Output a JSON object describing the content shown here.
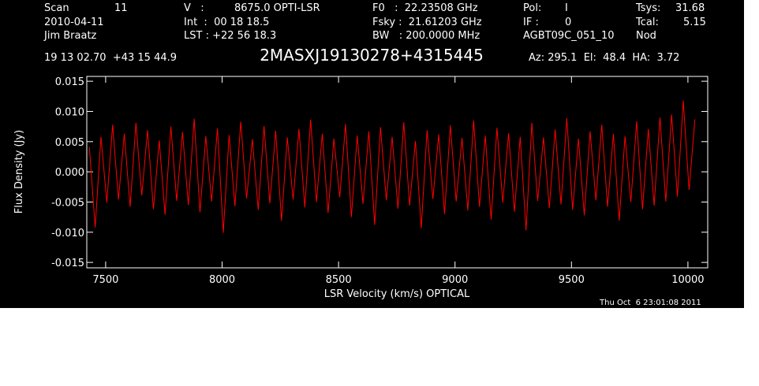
{
  "chart_data": {
    "type": "line",
    "title": "2MASXJ19130278+4315445",
    "annotations": [
      "Scan",
      "11",
      "V   :",
      "8675.0 OPTI-LSR",
      "F0   :  22.23508 GHz",
      "Pol:",
      "I",
      "Tsys:",
      "31.68",
      "2010-04-11",
      "Int  :  00 18 18.5",
      "Fsky :  21.61203 GHz",
      "IF :",
      "0",
      "Tcal:",
      "5.15",
      "Jim Braatz",
      "LST : +22 56 18.3",
      "BW   : 200.0000 MHz",
      "AGBT09C_051_10",
      "Nod",
      "19 13 02.70  +43 15 44.9",
      "Az: 295.1  El:  48.4  HA:  3.72",
      "Thu Oct  6 23:01:08 2011"
    ],
    "xlabel": "LSR Velocity (km/s) OPTICAL",
    "ylabel": "Flux Density (Jy)",
    "xlim": [
      7419,
      10085
    ],
    "ylim": [
      -0.0159,
      0.0158
    ],
    "xticks": [
      7500,
      8000,
      8500,
      9000,
      9500,
      10000
    ],
    "yticks": [
      {
        "value": 0.015,
        "label": "0.015"
      },
      {
        "value": 0.01,
        "label": "0.010"
      },
      {
        "value": 0.005,
        "label": "0.005"
      },
      {
        "value": 0,
        "label": "0.000"
      },
      {
        "value": -0.005,
        "label": "-0.005"
      },
      {
        "value": -0.01,
        "label": "-0.010"
      },
      {
        "value": -0.015,
        "label": "-0.015"
      }
    ],
    "x": [
      7430,
      7455,
      7480,
      7505,
      7530,
      7555,
      7580,
      7605,
      7630,
      7655,
      7680,
      7705,
      7730,
      7755,
      7780,
      7805,
      7830,
      7855,
      7880,
      7905,
      7930,
      7955,
      7980,
      8005,
      8030,
      8055,
      8080,
      8105,
      8130,
      8155,
      8180,
      8205,
      8230,
      8255,
      8280,
      8305,
      8330,
      8355,
      8380,
      8405,
      8430,
      8455,
      8480,
      8505,
      8530,
      8555,
      8580,
      8605,
      8630,
      8655,
      8680,
      8705,
      8730,
      8755,
      8780,
      8805,
      8830,
      8855,
      8880,
      8905,
      8930,
      8955,
      8980,
      9005,
      9030,
      9055,
      9080,
      9105,
      9130,
      9155,
      9180,
      9205,
      9230,
      9255,
      9280,
      9305,
      9330,
      9355,
      9380,
      9405,
      9430,
      9455,
      9480,
      9505,
      9530,
      9555,
      9580,
      9605,
      9630,
      9655,
      9680,
      9705,
      9730,
      9755,
      9780,
      9805,
      9830,
      9855,
      9880,
      9905,
      9930,
      9955,
      9980,
      10005,
      10030
    ],
    "series": [
      {
        "color": "#ff0000",
        "values": [
          0.0041,
          -0.0092,
          0.0058,
          -0.0051,
          0.0078,
          -0.0046,
          0.0063,
          -0.0058,
          0.0081,
          -0.0039,
          0.0069,
          -0.0062,
          0.0052,
          -0.0071,
          0.0075,
          -0.0048,
          0.0066,
          -0.0055,
          0.0088,
          -0.0067,
          0.0059,
          -0.0049,
          0.0072,
          -0.0101,
          0.0061,
          -0.0057,
          0.0083,
          -0.0044,
          0.0054,
          -0.0063,
          0.0076,
          -0.0052,
          0.0068,
          -0.0081,
          0.0057,
          -0.0046,
          0.0071,
          -0.0059,
          0.0086,
          -0.005,
          0.0063,
          -0.0068,
          0.0055,
          -0.0042,
          0.0079,
          -0.0075,
          0.006,
          -0.0053,
          0.0067,
          -0.0088,
          0.0074,
          -0.0047,
          0.0058,
          -0.0061,
          0.0082,
          -0.0056,
          0.0051,
          -0.0093,
          0.0069,
          -0.0045,
          0.0062,
          -0.007,
          0.0077,
          -0.0049,
          0.0056,
          -0.0064,
          0.0085,
          -0.0058,
          0.006,
          -0.0079,
          0.0073,
          -0.0051,
          0.0064,
          -0.0066,
          0.0058,
          -0.0097,
          0.0081,
          -0.0048,
          0.0057,
          -0.006,
          0.007,
          -0.0054,
          0.0089,
          -0.0063,
          0.0055,
          -0.0072,
          0.0067,
          -0.0047,
          0.0078,
          -0.0058,
          0.0063,
          -0.0081,
          0.0059,
          -0.005,
          0.0084,
          -0.0062,
          0.0071,
          -0.0056,
          0.009,
          -0.0049,
          0.0095,
          -0.0041,
          0.0118,
          -0.003,
          0.0087
        ]
      }
    ]
  }
}
